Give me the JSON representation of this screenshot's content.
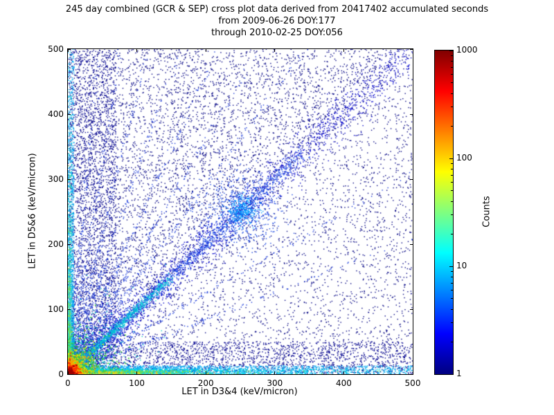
{
  "title": "245 day combined (GCR & SEP) cross plot data derived from 20417402 accumulated seconds",
  "subtitle1": "from 2009-06-26 DOY:177",
  "subtitle2": "through 2010-02-25 DOY:056",
  "chart_data": {
    "type": "heatmap",
    "title": "245 day combined (GCR & SEP) cross plot data derived from 20417402 accumulated seconds",
    "xlabel": "LET in D3&4 (keV/micron)",
    "ylabel": "LET in D5&6 (keV/micron)",
    "xlim": [
      0,
      500
    ],
    "ylim": [
      0,
      500
    ],
    "xticks": [
      0,
      100,
      200,
      300,
      400,
      500
    ],
    "yticks": [
      0,
      100,
      200,
      300,
      400,
      500
    ],
    "grid": false,
    "colorbar": {
      "label": "Counts",
      "scale": "log",
      "min": 1,
      "max": 1000,
      "ticks": [
        1,
        10,
        100,
        1000
      ],
      "colormap": "jet",
      "colormap_stops": [
        {
          "pos": 0.0,
          "color": "#000080"
        },
        {
          "pos": 0.125,
          "color": "#0000ff"
        },
        {
          "pos": 0.375,
          "color": "#00ffff"
        },
        {
          "pos": 0.625,
          "color": "#ffff00"
        },
        {
          "pos": 0.875,
          "color": "#ff0000"
        },
        {
          "pos": 1.0,
          "color": "#800000"
        }
      ]
    },
    "seed": 1234,
    "features": [
      {
        "type": "uniform",
        "n": 5200,
        "xr": [
          0,
          500
        ],
        "yr": [
          0,
          500
        ],
        "color": "#000082",
        "size": 1.4
      },
      {
        "type": "uniform",
        "n": 2100,
        "xr": [
          0,
          500
        ],
        "yr": [
          0,
          500
        ],
        "constraint": "y_gt_x",
        "color": "#000082",
        "size": 1.4
      },
      {
        "type": "uniform",
        "n": 2200,
        "xr": [
          0,
          70
        ],
        "yr": [
          0,
          500
        ],
        "color": "#000090",
        "size": 1.4
      },
      {
        "type": "uniform",
        "n": 1700,
        "xr": [
          0,
          500
        ],
        "yr": [
          0,
          50
        ],
        "color": "#000090",
        "size": 1.4
      },
      {
        "type": "diag",
        "n": 2600,
        "tmax": 500,
        "power": 1.8,
        "sigma": 13,
        "color": "#0000c8",
        "size": 1.4
      },
      {
        "type": "diag",
        "n": 1500,
        "tmax": 340,
        "power": 1.6,
        "sigma": 5,
        "color": "#2050e8",
        "size": 1.4
      },
      {
        "type": "diag",
        "n": 800,
        "tmax": 150,
        "power": 1.4,
        "sigma": 3,
        "color": "#00c8d8",
        "size": 1.4
      },
      {
        "type": "blob",
        "n": 600,
        "cx": 252,
        "cy": 252,
        "sx": 28,
        "sy": 28,
        "color": "#1040e0",
        "size": 1.4
      },
      {
        "type": "blob",
        "n": 260,
        "cx": 252,
        "cy": 252,
        "sx": 11,
        "sy": 11,
        "color": "#00a0ff",
        "size": 1.4
      },
      {
        "type": "ray",
        "n": 320,
        "slope": 1.45,
        "len": 260,
        "sigma": 2.5,
        "color": "#1838d8",
        "size": 1.4
      },
      {
        "type": "ray",
        "n": 300,
        "slope": 1.8,
        "len": 240,
        "sigma": 2.5,
        "color": "#1838d8",
        "size": 1.4
      },
      {
        "type": "ray",
        "n": 300,
        "slope": 2.3,
        "len": 230,
        "sigma": 2.5,
        "color": "#1838d8",
        "size": 1.4
      },
      {
        "type": "ray",
        "n": 280,
        "slope": 3.1,
        "len": 220,
        "sigma": 2.5,
        "color": "#1838d8",
        "size": 1.4
      },
      {
        "type": "ray",
        "n": 260,
        "slope": 4.3,
        "len": 210,
        "sigma": 2.2,
        "color": "#1838d8",
        "size": 1.4
      },
      {
        "type": "ray",
        "n": 240,
        "slope": 6.5,
        "len": 200,
        "sigma": 2.0,
        "color": "#1838d8",
        "size": 1.4
      },
      {
        "type": "ray",
        "n": 220,
        "slope": 11,
        "len": 190,
        "sigma": 1.8,
        "color": "#1838d8",
        "size": 1.4
      },
      {
        "type": "ray",
        "n": 220,
        "slope": 0.62,
        "len": 200,
        "sigma": 2.2,
        "color": "#1838d8",
        "size": 1.4
      },
      {
        "type": "ray",
        "n": 200,
        "slope": 0.42,
        "len": 170,
        "sigma": 2.0,
        "color": "#1838d8",
        "size": 1.4
      },
      {
        "type": "band_h",
        "n": 2300,
        "yr": [
          0,
          13
        ],
        "xscale": 300,
        "color": "#00a8f0",
        "size": 1.4
      },
      {
        "type": "band_h",
        "n": 1300,
        "yr": [
          0,
          8
        ],
        "xscale": 140,
        "color": "#00d8e8",
        "size": 1.4
      },
      {
        "type": "band_h",
        "n": 600,
        "yr": [
          0,
          6
        ],
        "xscale": 65,
        "color": "#7ae040",
        "size": 1.4
      },
      {
        "type": "band_h",
        "n": 260,
        "yr": [
          0,
          4
        ],
        "xscale": 38,
        "color": "#ffd000",
        "size": 1.4
      },
      {
        "type": "band_v",
        "n": 1500,
        "xr": [
          0,
          9
        ],
        "yscale": 280,
        "color": "#00a8f0",
        "size": 1.4
      },
      {
        "type": "band_v",
        "n": 700,
        "xr": [
          0,
          6
        ],
        "yscale": 130,
        "color": "#30d8c8",
        "size": 1.4
      },
      {
        "type": "band_v",
        "n": 300,
        "xr": [
          0,
          4
        ],
        "yscale": 60,
        "color": "#7ae040",
        "size": 1.4
      },
      {
        "type": "radial",
        "n": 1100,
        "rscale": 30,
        "color": "#00c8c8",
        "size": 1.4
      },
      {
        "type": "radial",
        "n": 950,
        "rscale": 18,
        "color": "#38cc38",
        "size": 1.8
      },
      {
        "type": "radial",
        "n": 850,
        "rscale": 11,
        "color": "#d8e000",
        "size": 1.8
      },
      {
        "type": "radial",
        "n": 750,
        "rscale": 7,
        "color": "#ff9800",
        "size": 2
      },
      {
        "type": "radial",
        "n": 650,
        "rscale": 4.5,
        "color": "#ff2800",
        "size": 2
      },
      {
        "type": "radial",
        "n": 450,
        "rscale": 2.5,
        "color": "#a00000",
        "size": 2
      }
    ]
  }
}
